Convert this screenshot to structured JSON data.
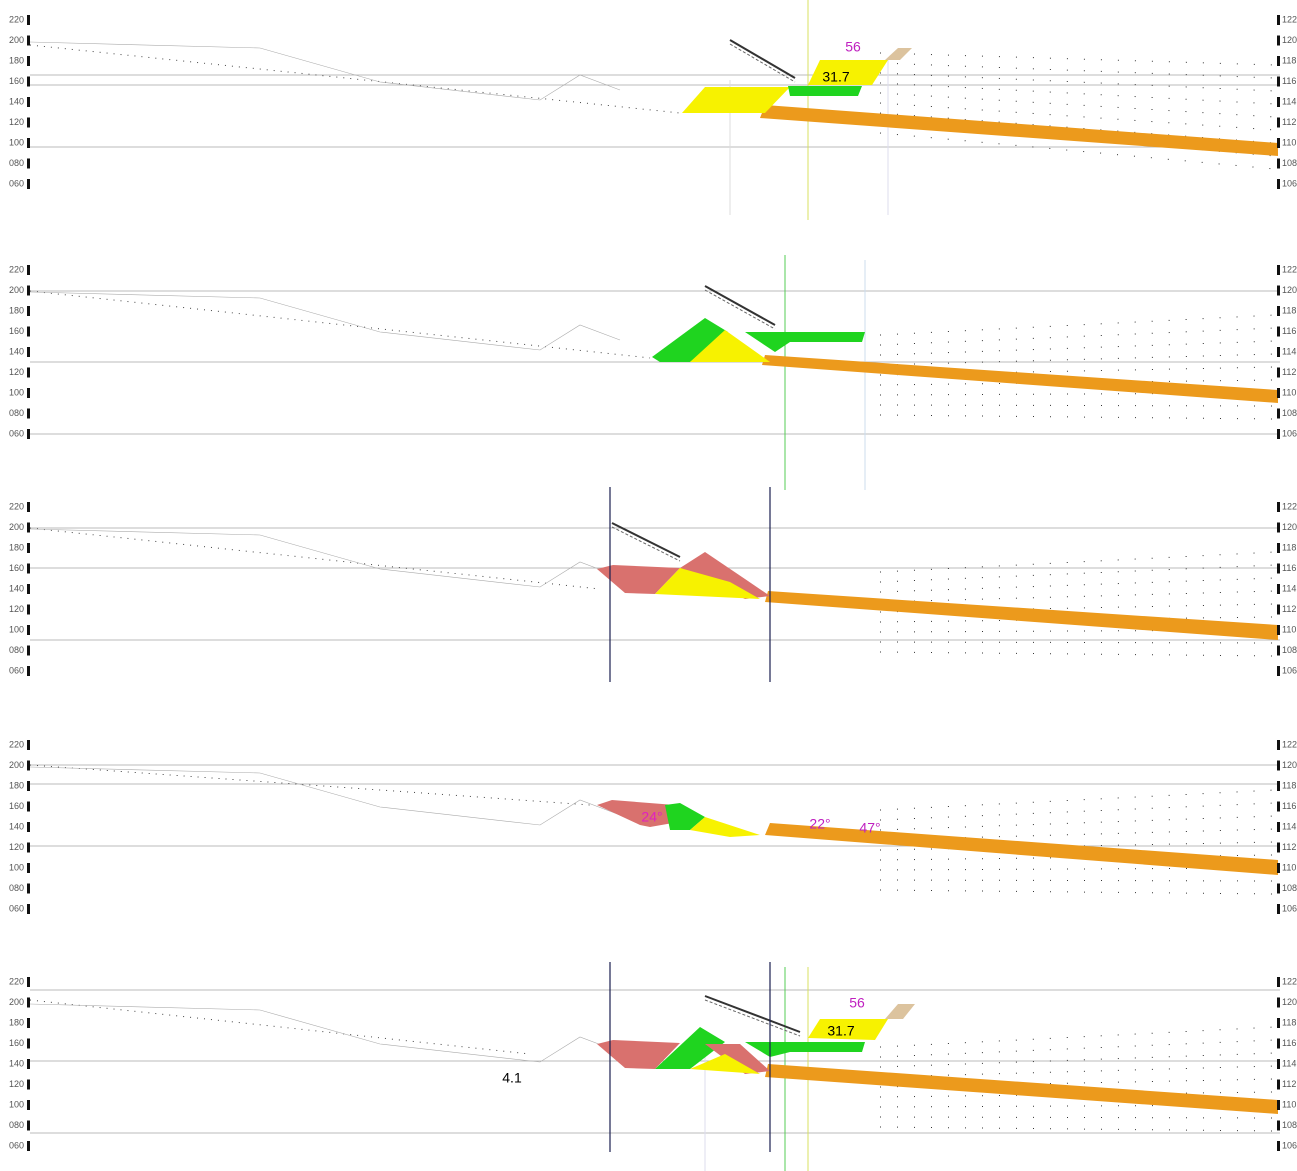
{
  "panels": [
    {
      "left_axis": [
        "220",
        "200",
        "180",
        "160",
        "140",
        "120",
        "100",
        "080",
        "060"
      ],
      "right_axis": [
        "122",
        "120",
        "118",
        "116",
        "114",
        "112",
        "110",
        "108",
        "106"
      ],
      "annotations": [
        "56",
        "31.7"
      ]
    },
    {
      "left_axis": [
        "220",
        "200",
        "180",
        "160",
        "140",
        "120",
        "100",
        "080",
        "060"
      ],
      "right_axis": [
        "122",
        "120",
        "118",
        "116",
        "114",
        "112",
        "110",
        "108",
        "106"
      ],
      "annotations": []
    },
    {
      "left_axis": [
        "220",
        "200",
        "180",
        "160",
        "140",
        "120",
        "100",
        "080",
        "060"
      ],
      "right_axis": [
        "122",
        "120",
        "118",
        "116",
        "114",
        "112",
        "110",
        "108",
        "106"
      ],
      "annotations": []
    },
    {
      "left_axis": [
        "220",
        "200",
        "180",
        "160",
        "140",
        "120",
        "100",
        "080",
        "060"
      ],
      "right_axis": [
        "122",
        "120",
        "118",
        "116",
        "114",
        "112",
        "110",
        "108",
        "106"
      ],
      "annotations": [
        "24°",
        "22°",
        "47°"
      ]
    },
    {
      "left_axis": [
        "220",
        "200",
        "180",
        "160",
        "140",
        "120",
        "100",
        "080",
        "060"
      ],
      "right_axis": [
        "122",
        "120",
        "118",
        "116",
        "114",
        "112",
        "110",
        "108",
        "106"
      ],
      "annotations": [
        "56",
        "31.7",
        "4.1"
      ]
    }
  ]
}
